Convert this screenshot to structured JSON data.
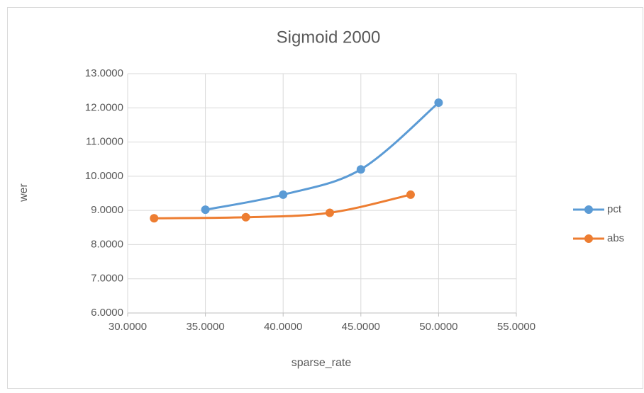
{
  "chart_data": {
    "type": "scatter-smooth",
    "title": "Sigmoid 2000",
    "xlabel": "sparse_rate",
    "ylabel": "wer",
    "xlim": [
      30,
      55
    ],
    "ylim": [
      6,
      13
    ],
    "xticks": [
      {
        "value": 30,
        "label": "30.0000"
      },
      {
        "value": 35,
        "label": "35.0000"
      },
      {
        "value": 40,
        "label": "40.0000"
      },
      {
        "value": 45,
        "label": "45.0000"
      },
      {
        "value": 50,
        "label": "50.0000"
      },
      {
        "value": 55,
        "label": "55.0000"
      }
    ],
    "yticks": [
      {
        "value": 6,
        "label": "6.0000"
      },
      {
        "value": 7,
        "label": "7.0000"
      },
      {
        "value": 8,
        "label": "8.0000"
      },
      {
        "value": 9,
        "label": "9.0000"
      },
      {
        "value": 10,
        "label": "10.0000"
      },
      {
        "value": 11,
        "label": "11.0000"
      },
      {
        "value": 12,
        "label": "12.0000"
      },
      {
        "value": 13,
        "label": "13.0000"
      }
    ],
    "grid": true,
    "legend": "right",
    "series": [
      {
        "name": "pct",
        "color": "#5b9bd5",
        "x": [
          35,
          40,
          45,
          50
        ],
        "values": [
          9.02,
          9.46,
          10.2,
          12.15
        ]
      },
      {
        "name": "abs",
        "color": "#ed7d31",
        "x": [
          31.7,
          37.6,
          43.0,
          48.2
        ],
        "values": [
          8.77,
          8.8,
          8.93,
          9.46
        ]
      }
    ]
  }
}
